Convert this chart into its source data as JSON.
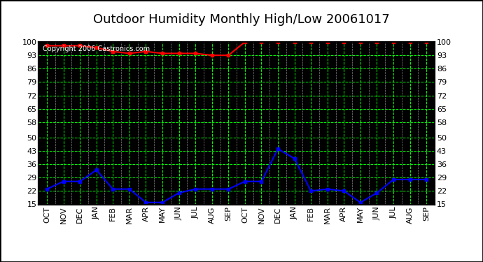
{
  "title": "Outdoor Humidity Monthly High/Low 20061017",
  "copyright": "Copyright 2006 Castronics.com",
  "x_labels": [
    "OCT",
    "NOV",
    "DEC",
    "JAN",
    "FEB",
    "MAR",
    "APR",
    "MAY",
    "JUN",
    "JUL",
    "AUG",
    "SEP",
    "OCT",
    "NOV",
    "DEC",
    "JAN",
    "FEB",
    "MAR",
    "APR",
    "MAY",
    "JUN",
    "JUL",
    "AUG",
    "SEP"
  ],
  "high_values": [
    98,
    98,
    98,
    97,
    95,
    94,
    95,
    94,
    94,
    94,
    93,
    93,
    100,
    100,
    100,
    100,
    100,
    100,
    100,
    100,
    100,
    100,
    100,
    100
  ],
  "low_values": [
    23,
    27,
    27,
    33,
    23,
    23,
    16,
    16,
    21,
    23,
    23,
    23,
    27,
    27,
    44,
    39,
    22,
    23,
    22,
    16,
    21,
    28,
    28,
    28
  ],
  "high_color": "#ff0000",
  "low_color": "#0000ff",
  "bg_color": "#000000",
  "outer_bg_color": "#ffffff",
  "grid_color_major_h": "#00ff00",
  "grid_color_major_v": "#00ff00",
  "grid_color_minor_v": "#808080",
  "ylim": [
    15,
    100
  ],
  "yticks": [
    100,
    93,
    86,
    79,
    72,
    65,
    58,
    50,
    43,
    36,
    29,
    22,
    15
  ],
  "title_fontsize": 13,
  "copyright_fontsize": 7,
  "label_color": "#000000",
  "tick_label_fontsize": 8
}
